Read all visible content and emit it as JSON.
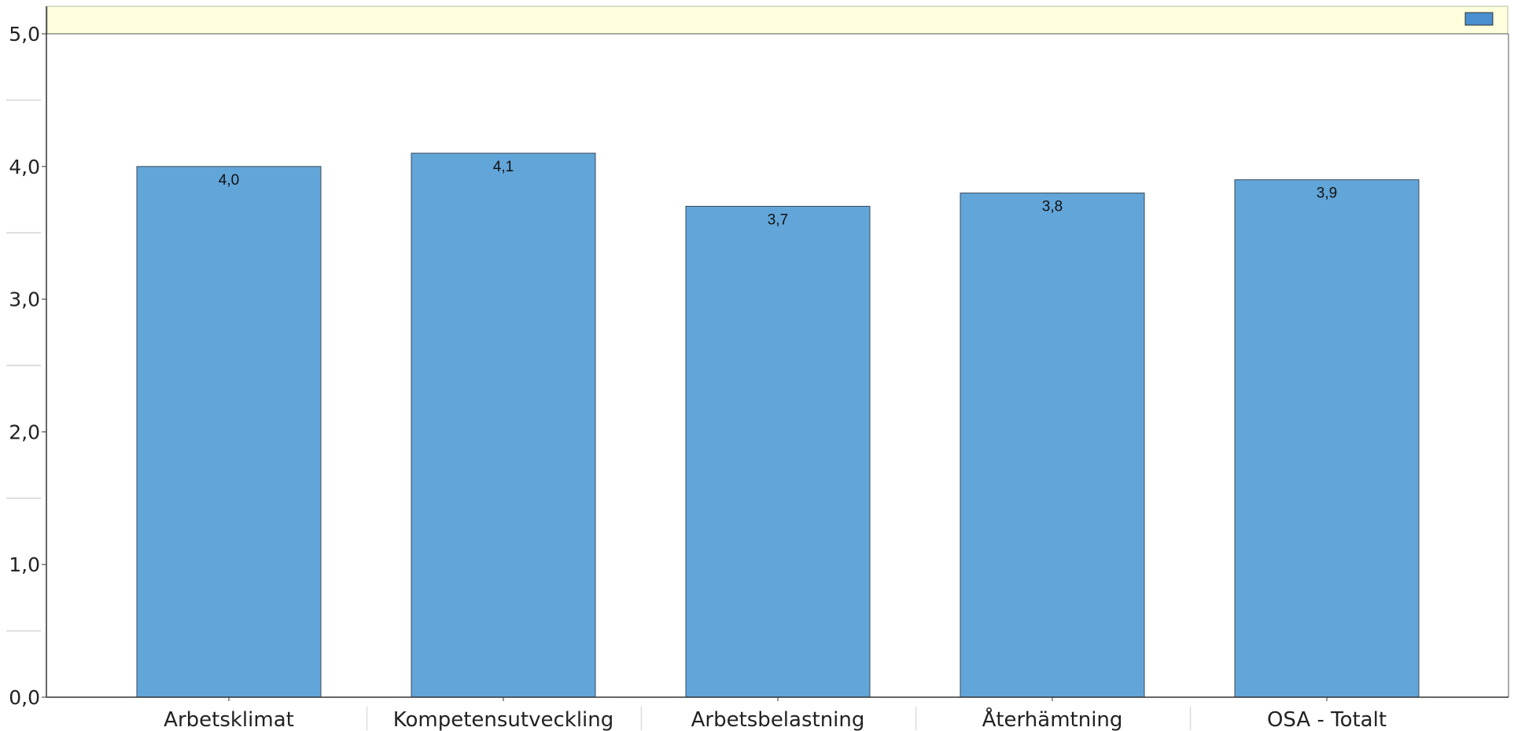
{
  "chart_data": {
    "type": "bar",
    "categories": [
      "Arbetsklimat",
      "Kompetensutveckling",
      "Arbetsbelastning",
      "Återhämtning",
      "OSA - Totalt"
    ],
    "values": [
      4.0,
      4.1,
      3.7,
      3.8,
      3.9
    ],
    "value_labels": [
      "4,0",
      "4,1",
      "3,7",
      "3,8",
      "3,9"
    ],
    "ylim": [
      0,
      5
    ],
    "y_ticks": [
      {
        "value": 0,
        "label": "0,0"
      },
      {
        "value": 1,
        "label": "1,0"
      },
      {
        "value": 2,
        "label": "2,0"
      },
      {
        "value": 3,
        "label": "3,0"
      },
      {
        "value": 4,
        "label": "4,0"
      },
      {
        "value": 5,
        "label": "5,0"
      }
    ],
    "y_minor_ticks": [
      0.5,
      1.5,
      2.5,
      3.5,
      4.5
    ],
    "title": "",
    "xlabel": "",
    "ylabel": "",
    "grid": false,
    "legend": {
      "position": "top-right",
      "entries": [
        ""
      ]
    },
    "colors": {
      "bar_fill": "#62a5d9",
      "bar_stroke": "#3a4a5a",
      "legend_band": "#ffffdd",
      "axis": "#333333",
      "legend_swatch_fill": "#4a8fcf"
    }
  }
}
